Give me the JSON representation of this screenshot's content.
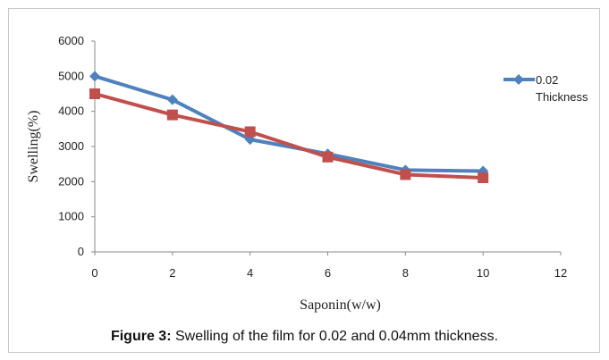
{
  "chart_data": {
    "type": "line",
    "x": [
      0,
      2,
      4,
      6,
      8,
      10
    ],
    "series": [
      {
        "name": "0.02 Thickness",
        "values": [
          5000,
          4330,
          3200,
          2790,
          2330,
          2300
        ],
        "color": "#4F81BD",
        "marker": "diamond"
      },
      {
        "values": [
          4500,
          3900,
          3420,
          2700,
          2200,
          2110
        ],
        "color": "#C0504D",
        "marker": "square"
      }
    ],
    "xlabel": "Saponin(w/w)",
    "ylabel": "Swelling(%)",
    "xlim": [
      0,
      12
    ],
    "ylim": [
      0,
      6000
    ],
    "xticks": [
      0,
      2,
      4,
      6,
      8,
      10,
      12
    ],
    "yticks": [
      0,
      1000,
      2000,
      3000,
      4000,
      5000,
      6000
    ],
    "grid": false,
    "legend": {
      "position": "right",
      "lines": [
        "0.02",
        "Thickness"
      ]
    }
  },
  "caption": {
    "label": "Figure 3:",
    "text": " Swelling of the film for 0.02 and 0.04mm thickness."
  }
}
